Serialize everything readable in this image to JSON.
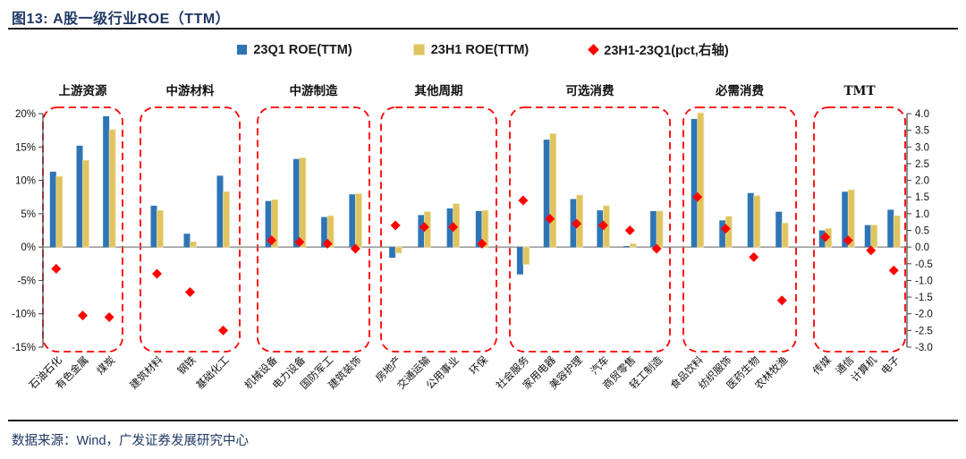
{
  "header": {
    "title": "图13:  A股一级行业ROE（TTM）"
  },
  "footer": {
    "source": "数据来源：Wind，广发证券发展研究中心"
  },
  "legend": [
    {
      "label": "23Q1 ROE(TTM)",
      "marker": "square"
    },
    {
      "label": "23H1 ROE(TTM)",
      "marker": "square"
    },
    {
      "label": "23H1-23Q1(pct,右轴)",
      "marker": "diamond"
    }
  ],
  "colors": {
    "q1_bar": "#2E75B6",
    "h1_bar": "#DFC45F",
    "h1_border": "#EFE2AC",
    "diff_marker": "#FF0000",
    "box_dash": "#FF0000",
    "navy_text": "#1F3864",
    "zero_line": "#808080",
    "axis": "#404040"
  },
  "chart_data": {
    "type": "bar",
    "title": "A股一级行业ROE（TTM）",
    "legend_position": "top",
    "grid": false,
    "series_names": [
      "23Q1 ROE(TTM)",
      "23H1 ROE(TTM)",
      "23H1-23Q1(pct,右轴)"
    ],
    "left_axis": {
      "unit": "%",
      "max": 20,
      "min": -15,
      "step": 5,
      "ticks": [
        "20%",
        "15%",
        "10%",
        "5%",
        "0%",
        "-5%",
        "-10%",
        "-15%"
      ]
    },
    "right_axis": {
      "max": 4.0,
      "min": -3.0,
      "step": 0.5,
      "ticks": [
        "4.0",
        "3.5",
        "3.0",
        "2.5",
        "2.0",
        "1.5",
        "1.0",
        "0.5",
        "0.0",
        "-0.5",
        "-1.0",
        "-1.5",
        "-2.0",
        "-2.5",
        "-3.0"
      ]
    },
    "groups": [
      {
        "name": "上游资源",
        "industries": [
          {
            "label": "石油石化",
            "q1": 11.3,
            "h1": 10.6,
            "diff": -0.65
          },
          {
            "label": "有色金属",
            "q1": 15.2,
            "h1": 13.0,
            "diff": -2.05
          },
          {
            "label": "煤炭",
            "q1": 19.6,
            "h1": 17.6,
            "diff": -2.1
          }
        ]
      },
      {
        "name": "中游材料",
        "industries": [
          {
            "label": "建筑材料",
            "q1": 6.2,
            "h1": 5.5,
            "diff": -0.8
          },
          {
            "label": "钢铁",
            "q1": 2.0,
            "h1": 0.8,
            "diff": -1.35
          },
          {
            "label": "基础化工",
            "q1": 10.7,
            "h1": 8.3,
            "diff": -2.5
          }
        ]
      },
      {
        "name": "中游制造",
        "industries": [
          {
            "label": "机械设备",
            "q1": 6.9,
            "h1": 7.1,
            "diff": 0.2
          },
          {
            "label": "电力设备",
            "q1": 13.2,
            "h1": 13.4,
            "diff": 0.15
          },
          {
            "label": "国防军工",
            "q1": 4.5,
            "h1": 4.7,
            "diff": 0.1
          },
          {
            "label": "建筑装饰",
            "q1": 7.9,
            "h1": 8.0,
            "diff": -0.05
          }
        ]
      },
      {
        "name": "其他周期",
        "industries": [
          {
            "label": "房地产",
            "q1": -1.6,
            "h1": -0.9,
            "diff": 0.65
          },
          {
            "label": "交通运输",
            "q1": 4.8,
            "h1": 5.3,
            "diff": 0.6
          },
          {
            "label": "公用事业",
            "q1": 5.8,
            "h1": 6.5,
            "diff": 0.6
          },
          {
            "label": "环保",
            "q1": 5.4,
            "h1": 5.5,
            "diff": 0.1
          }
        ]
      },
      {
        "name": "可选消费",
        "industries": [
          {
            "label": "社会服务",
            "q1": -4.1,
            "h1": -2.6,
            "diff": 1.4
          },
          {
            "label": "家用电器",
            "q1": 16.1,
            "h1": 17.0,
            "diff": 0.85
          },
          {
            "label": "美容护理",
            "q1": 7.2,
            "h1": 7.8,
            "diff": 0.7
          },
          {
            "label": "汽车",
            "q1": 5.5,
            "h1": 6.2,
            "diff": 0.65
          },
          {
            "label": "商贸零售",
            "q1": 0.15,
            "h1": 0.5,
            "diff": 0.5
          },
          {
            "label": "轻工制造",
            "q1": 5.4,
            "h1": 5.4,
            "diff": -0.05
          }
        ]
      },
      {
        "name": "必需消费",
        "industries": [
          {
            "label": "食品饮料",
            "q1": 19.2,
            "h1": 20.1,
            "diff": 1.5
          },
          {
            "label": "纺织服饰",
            "q1": 4.0,
            "h1": 4.6,
            "diff": 0.55
          },
          {
            "label": "医药生物",
            "q1": 8.1,
            "h1": 7.7,
            "diff": -0.3
          },
          {
            "label": "农林牧渔",
            "q1": 5.3,
            "h1": 3.6,
            "diff": -1.6
          }
        ]
      },
      {
        "name": "TMT",
        "industries": [
          {
            "label": "传媒",
            "q1": 2.5,
            "h1": 2.8,
            "diff": 0.3
          },
          {
            "label": "通信",
            "q1": 8.3,
            "h1": 8.6,
            "diff": 0.2
          },
          {
            "label": "计算机",
            "q1": 3.3,
            "h1": 3.3,
            "diff": -0.1
          },
          {
            "label": "电子",
            "q1": 5.6,
            "h1": 4.7,
            "diff": -0.7
          }
        ]
      }
    ]
  }
}
